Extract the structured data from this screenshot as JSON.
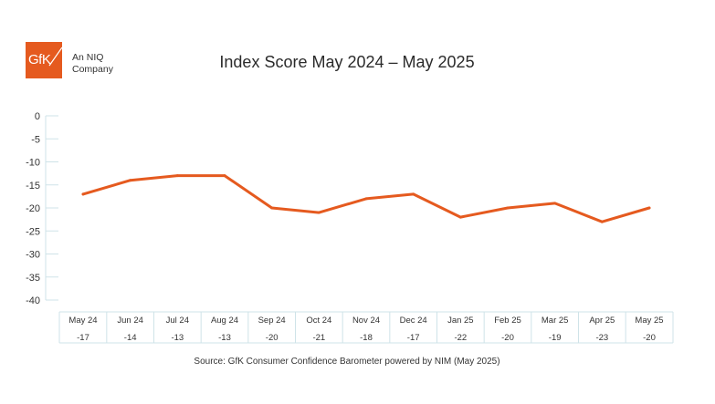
{
  "brand": {
    "logo_text": "GfK",
    "tagline_line1": "An NIQ",
    "tagline_line2": "Company",
    "accent": "#e55a1f"
  },
  "chart_data": {
    "type": "line",
    "title": "Index Score May 2024 – May 2025",
    "categories": [
      "May 24",
      "Jun 24",
      "Jul 24",
      "Aug 24",
      "Sep 24",
      "Oct 24",
      "Nov 24",
      "Dec 24",
      "Jan 25",
      "Feb 25",
      "Mar 25",
      "Apr 25",
      "May 25"
    ],
    "series": [
      {
        "name": "Index Score",
        "values": [
          -17,
          -14,
          -13,
          -13,
          -20,
          -21,
          -18,
          -17,
          -22,
          -20,
          -19,
          -23,
          -20
        ],
        "color": "#e55a1f"
      }
    ],
    "table_values": [
      "-17",
      "-14",
      "-13",
      "-13",
      "-20",
      "-21",
      "-18",
      "-17",
      "-22",
      "-20",
      "-19",
      "-23",
      "-20"
    ],
    "yticks": [
      0,
      -5,
      -10,
      -15,
      -20,
      -25,
      -30,
      -35,
      -40
    ],
    "ylim": [
      -40,
      0
    ],
    "grid": false,
    "xlabel": "",
    "ylabel": ""
  },
  "source": "Source: GfK Consumer Confidence Barometer powered by NIM (May 2025)"
}
